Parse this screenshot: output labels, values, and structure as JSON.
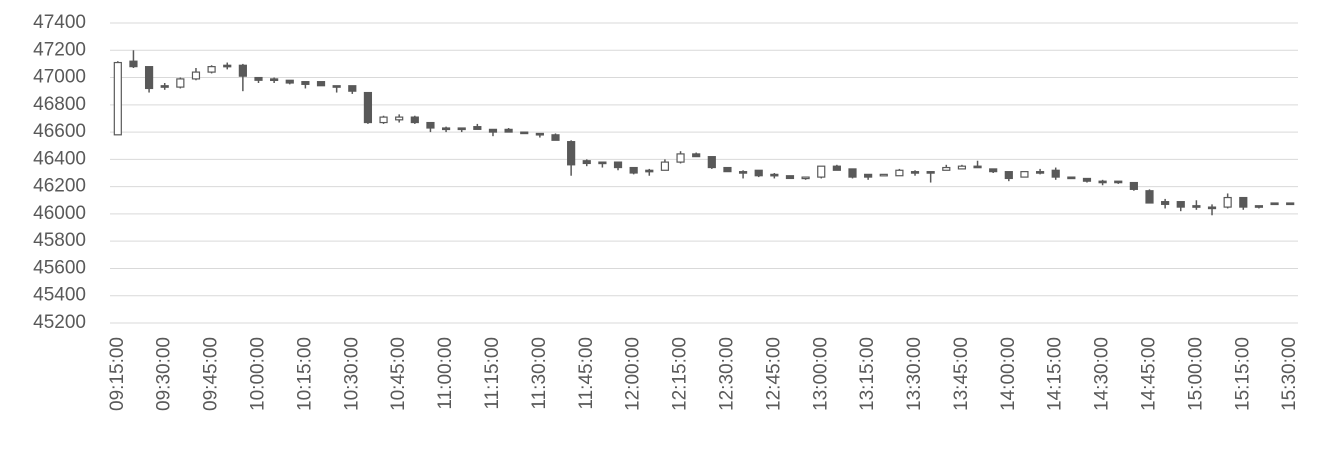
{
  "chart_data": {
    "type": "candlestick",
    "categories": [
      "09:15:00",
      null,
      null,
      "09:30:00",
      null,
      null,
      "09:45:00",
      null,
      null,
      "10:00:00",
      null,
      null,
      "10:15:00",
      null,
      null,
      "10:30:00",
      null,
      null,
      "10:45:00",
      null,
      null,
      "11:00:00",
      null,
      null,
      "11:15:00",
      null,
      null,
      "11:30:00",
      null,
      null,
      "11:45:00",
      null,
      null,
      "12:00:00",
      null,
      null,
      "12:15:00",
      null,
      null,
      "12:30:00",
      null,
      null,
      "12:45:00",
      null,
      null,
      "13:00:00",
      null,
      null,
      "13:15:00",
      null,
      null,
      "13:30:00",
      null,
      null,
      "13:45:00",
      null,
      null,
      "14:00:00",
      null,
      null,
      "14:15:00",
      null,
      null,
      "14:30:00",
      null,
      null,
      "14:45:00",
      null,
      null,
      "15:00:00",
      null,
      null,
      "15:15:00",
      null,
      null,
      "15:30:00"
    ],
    "open": [
      46580,
      47120,
      47080,
      46940,
      46930,
      46990,
      47040,
      47090,
      47090,
      47000,
      46990,
      46980,
      46970,
      46970,
      46940,
      46940,
      46890,
      46670,
      46690,
      46710,
      46670,
      46630,
      46630,
      46640,
      46620,
      46620,
      46600,
      46590,
      46580,
      46530,
      46390,
      46380,
      46380,
      46340,
      46320,
      46320,
      46380,
      46440,
      46420,
      46340,
      46310,
      46320,
      46290,
      46280,
      46260,
      46270,
      46350,
      46330,
      46290,
      46280,
      46280,
      46310,
      46310,
      46320,
      46330,
      46350,
      46330,
      46310,
      46270,
      46310,
      46320,
      46270,
      46260,
      46240,
      46240,
      46230,
      46170,
      46090,
      46090,
      46060,
      46050,
      46050,
      46120,
      46060,
      46080,
      46080
    ],
    "high": [
      47120,
      47200,
      47080,
      46960,
      47000,
      47070,
      47090,
      47110,
      47100,
      47000,
      47000,
      46980,
      46970,
      46970,
      46940,
      46940,
      46890,
      46720,
      46730,
      46720,
      46670,
      46640,
      46630,
      46660,
      46620,
      46630,
      46600,
      46590,
      46590,
      46540,
      46400,
      46380,
      46380,
      46340,
      46330,
      46400,
      46460,
      46450,
      46420,
      46340,
      46320,
      46320,
      46300,
      46280,
      46270,
      46350,
      46360,
      46330,
      46290,
      46290,
      46330,
      46320,
      46310,
      46360,
      46360,
      46390,
      46330,
      46310,
      46310,
      46330,
      46340,
      46270,
      46260,
      46250,
      46240,
      46230,
      46180,
      46110,
      46090,
      46100,
      46070,
      46150,
      46120,
      46060,
      46080,
      46080
    ],
    "low": [
      46580,
      47070,
      46890,
      46910,
      46920,
      46980,
      47030,
      47060,
      46900,
      46960,
      46960,
      46950,
      46920,
      46940,
      46890,
      46880,
      46660,
      46660,
      46670,
      46660,
      46600,
      46600,
      46600,
      46620,
      46570,
      46600,
      46590,
      46560,
      46540,
      46280,
      46350,
      46340,
      46320,
      46290,
      46280,
      46320,
      46370,
      46420,
      46330,
      46310,
      46260,
      46270,
      46260,
      46260,
      46250,
      46260,
      46320,
      46260,
      46250,
      46280,
      46280,
      46280,
      46230,
      46320,
      46330,
      46340,
      46300,
      46240,
      46270,
      46290,
      46250,
      46260,
      46230,
      46210,
      46220,
      46170,
      46080,
      46040,
      46020,
      46030,
      45990,
      46040,
      46030,
      46040,
      46070,
      46070
    ],
    "close": [
      47110,
      47080,
      46920,
      46930,
      46990,
      47040,
      47080,
      47080,
      47010,
      46980,
      46980,
      46960,
      46950,
      46940,
      46930,
      46900,
      46670,
      46710,
      46710,
      46670,
      46630,
      46620,
      46620,
      46620,
      46600,
      46600,
      46590,
      46580,
      46540,
      46360,
      46370,
      46370,
      46340,
      46300,
      46310,
      46380,
      46440,
      46420,
      46340,
      46310,
      46300,
      46280,
      46280,
      46260,
      46270,
      46350,
      46320,
      46270,
      46270,
      46290,
      46320,
      46300,
      46300,
      46340,
      46350,
      46340,
      46310,
      46260,
      46310,
      46300,
      46270,
      46260,
      46240,
      46230,
      46230,
      46180,
      46080,
      46070,
      46050,
      46050,
      46040,
      46120,
      46050,
      46050,
      46070,
      46070
    ],
    "up_color": "#ffffff",
    "down_color": "#595959",
    "stroke_color": "#595959",
    "ylim": [
      45200,
      47400
    ],
    "yticks": [
      45200,
      45400,
      45600,
      45800,
      46000,
      46200,
      46400,
      46600,
      46800,
      47000,
      47200,
      47400
    ],
    "grid": true
  }
}
